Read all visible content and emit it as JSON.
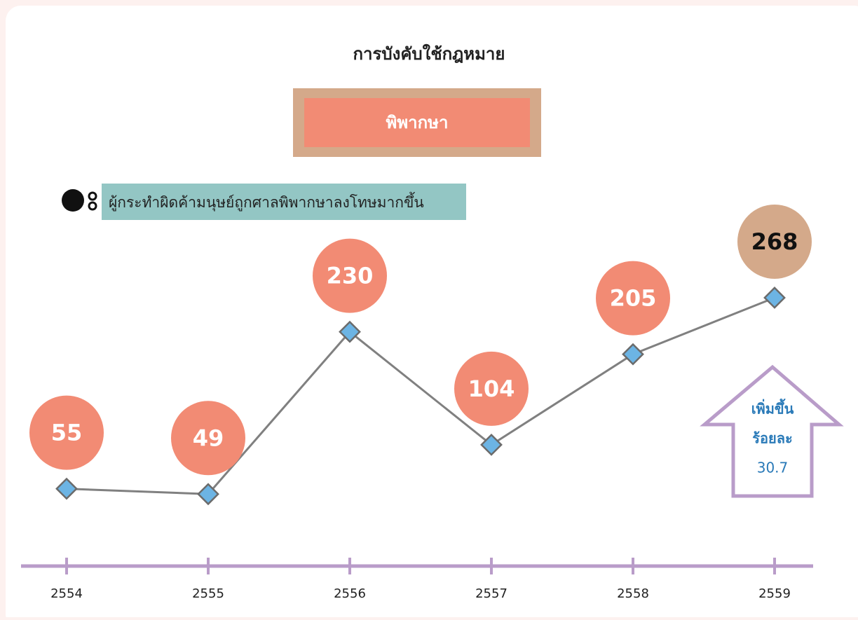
{
  "chart_data": {
    "type": "line",
    "title": "การบังคับใช้กฎหมาย",
    "subtitle": "พิพากษา",
    "annotation": "ผู้กระทำผิดค้ามนุษย์ถูกศาลพิพากษาลงโทษมากขึ้น",
    "callout": [
      "เพิ่มขึ้น",
      "ร้อยละ",
      "30.7"
    ],
    "categories": [
      "2554",
      "2555",
      "2556",
      "2557",
      "2558",
      "2559"
    ],
    "values": [
      55,
      49,
      230,
      104,
      205,
      268
    ],
    "color": "#808080",
    "marker_color": "#6cb4e4",
    "point_colors": [
      "#f28b74",
      "#f28b74",
      "#f28b74",
      "#f28b74",
      "#f28b74",
      "#d4a98a"
    ],
    "ylim": [
      0,
      300
    ]
  }
}
